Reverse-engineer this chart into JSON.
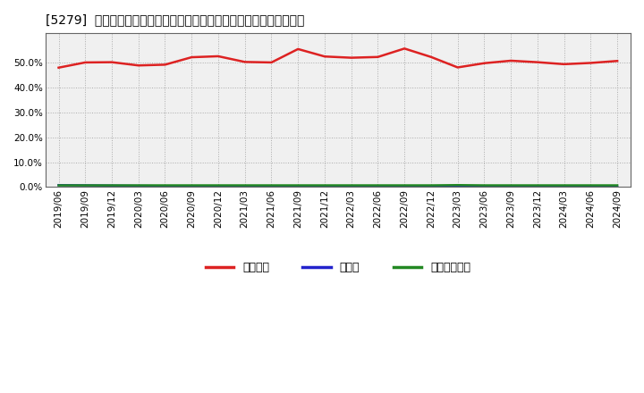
{
  "title": "[5279]  自己資本、のれん、繰延税金資産の総資産に対する比率の推移",
  "x_labels": [
    "2019/06",
    "2019/09",
    "2019/12",
    "2020/03",
    "2020/06",
    "2020/09",
    "2020/12",
    "2021/03",
    "2021/06",
    "2021/09",
    "2021/12",
    "2022/03",
    "2022/06",
    "2022/09",
    "2022/12",
    "2023/03",
    "2023/06",
    "2023/09",
    "2023/12",
    "2024/03",
    "2024/06",
    "2024/09"
  ],
  "equity_ratio": [
    0.481,
    0.502,
    0.503,
    0.49,
    0.493,
    0.523,
    0.527,
    0.504,
    0.502,
    0.556,
    0.526,
    0.521,
    0.524,
    0.558,
    0.524,
    0.482,
    0.499,
    0.509,
    0.503,
    0.495,
    0.5,
    0.508
  ],
  "goodwill_ratio": [
    0.008,
    0.007,
    0.006,
    0.005,
    0.004,
    0.004,
    0.003,
    0.003,
    0.002,
    0.002,
    0.002,
    0.001,
    0.001,
    0.001,
    0.001,
    0.001,
    0.001,
    0.001,
    0.001,
    0.001,
    0.001,
    0.001
  ],
  "deferred_tax_ratio": [
    0.007,
    0.007,
    0.007,
    0.007,
    0.007,
    0.007,
    0.007,
    0.007,
    0.007,
    0.007,
    0.007,
    0.007,
    0.007,
    0.007,
    0.007,
    0.008,
    0.007,
    0.007,
    0.007,
    0.007,
    0.007,
    0.007
  ],
  "equity_color": "#dd2222",
  "goodwill_color": "#2222cc",
  "deferred_tax_color": "#228822",
  "bg_color": "#ffffff",
  "plot_bg_color": "#f0f0f0",
  "grid_color": "#aaaaaa",
  "ylim": [
    0.0,
    0.62
  ],
  "yticks": [
    0.0,
    0.1,
    0.2,
    0.3,
    0.4,
    0.5
  ],
  "legend_label_equity": "自己資本",
  "legend_label_goodwill": "のれん",
  "legend_label_deferred": "繰延税金資産",
  "line_width": 1.8
}
